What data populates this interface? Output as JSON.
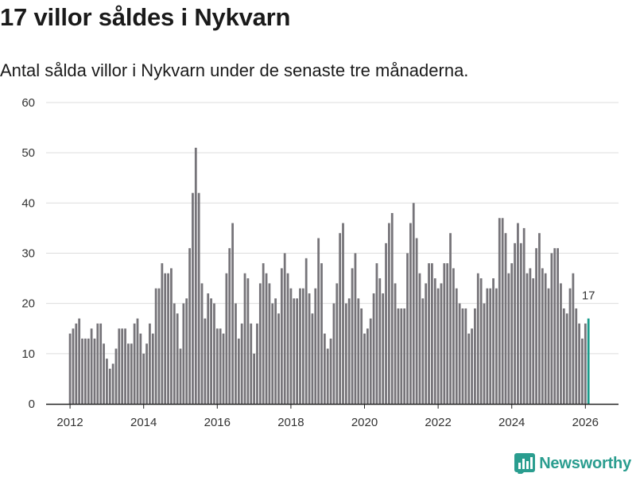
{
  "colors": {
    "bar": "#767479",
    "highlight": "#1a9c8c",
    "grid": "#dddddd",
    "brand": "#2a9d8f"
  },
  "brand": {
    "name": "Newsworthy",
    "icon": "bar-chart-logo-icon"
  },
  "chart_data": {
    "type": "bar",
    "title": "17 villor såldes i Nykvarn",
    "subtitle": "Antal sålda villor i Nykvarn under de senaste tre månaderna.",
    "xlabel": "",
    "ylabel": "",
    "ylim": [
      0,
      60
    ],
    "yticks": [
      0,
      10,
      20,
      30,
      40,
      50,
      60
    ],
    "x_start": "2012-01",
    "xlim": [
      2011.35,
      2026.9
    ],
    "xticks": [
      2012,
      2014,
      2016,
      2018,
      2020,
      2022,
      2024,
      2026
    ],
    "values": [
      14,
      15,
      16,
      17,
      13,
      13,
      13,
      15,
      13,
      16,
      16,
      12,
      9,
      7,
      8,
      11,
      15,
      15,
      15,
      12,
      12,
      16,
      17,
      14,
      10,
      12,
      16,
      14,
      23,
      23,
      28,
      26,
      26,
      27,
      20,
      18,
      11,
      20,
      21,
      31,
      42,
      51,
      42,
      24,
      17,
      22,
      21,
      20,
      15,
      15,
      14,
      26,
      31,
      36,
      20,
      13,
      16,
      26,
      25,
      16,
      10,
      16,
      24,
      28,
      26,
      24,
      20,
      21,
      18,
      27,
      30,
      26,
      23,
      21,
      21,
      23,
      23,
      29,
      22,
      18,
      23,
      33,
      28,
      14,
      11,
      13,
      20,
      24,
      34,
      36,
      20,
      21,
      27,
      30,
      21,
      19,
      14,
      15,
      17,
      22,
      28,
      25,
      22,
      32,
      36,
      38,
      24,
      19,
      19,
      19,
      30,
      36,
      40,
      33,
      26,
      21,
      24,
      28,
      28,
      25,
      23,
      24,
      28,
      28,
      34,
      27,
      23,
      20,
      19,
      19,
      14,
      15,
      19,
      26,
      25,
      20,
      23,
      23,
      25,
      23,
      37,
      37,
      34,
      26,
      28,
      32,
      36,
      32,
      35,
      26,
      27,
      25,
      31,
      34,
      27,
      26,
      23,
      30,
      31,
      31,
      24,
      19,
      18,
      23,
      26,
      19,
      16,
      13,
      16,
      17
    ],
    "highlight": {
      "label": "17",
      "value": 17
    }
  }
}
